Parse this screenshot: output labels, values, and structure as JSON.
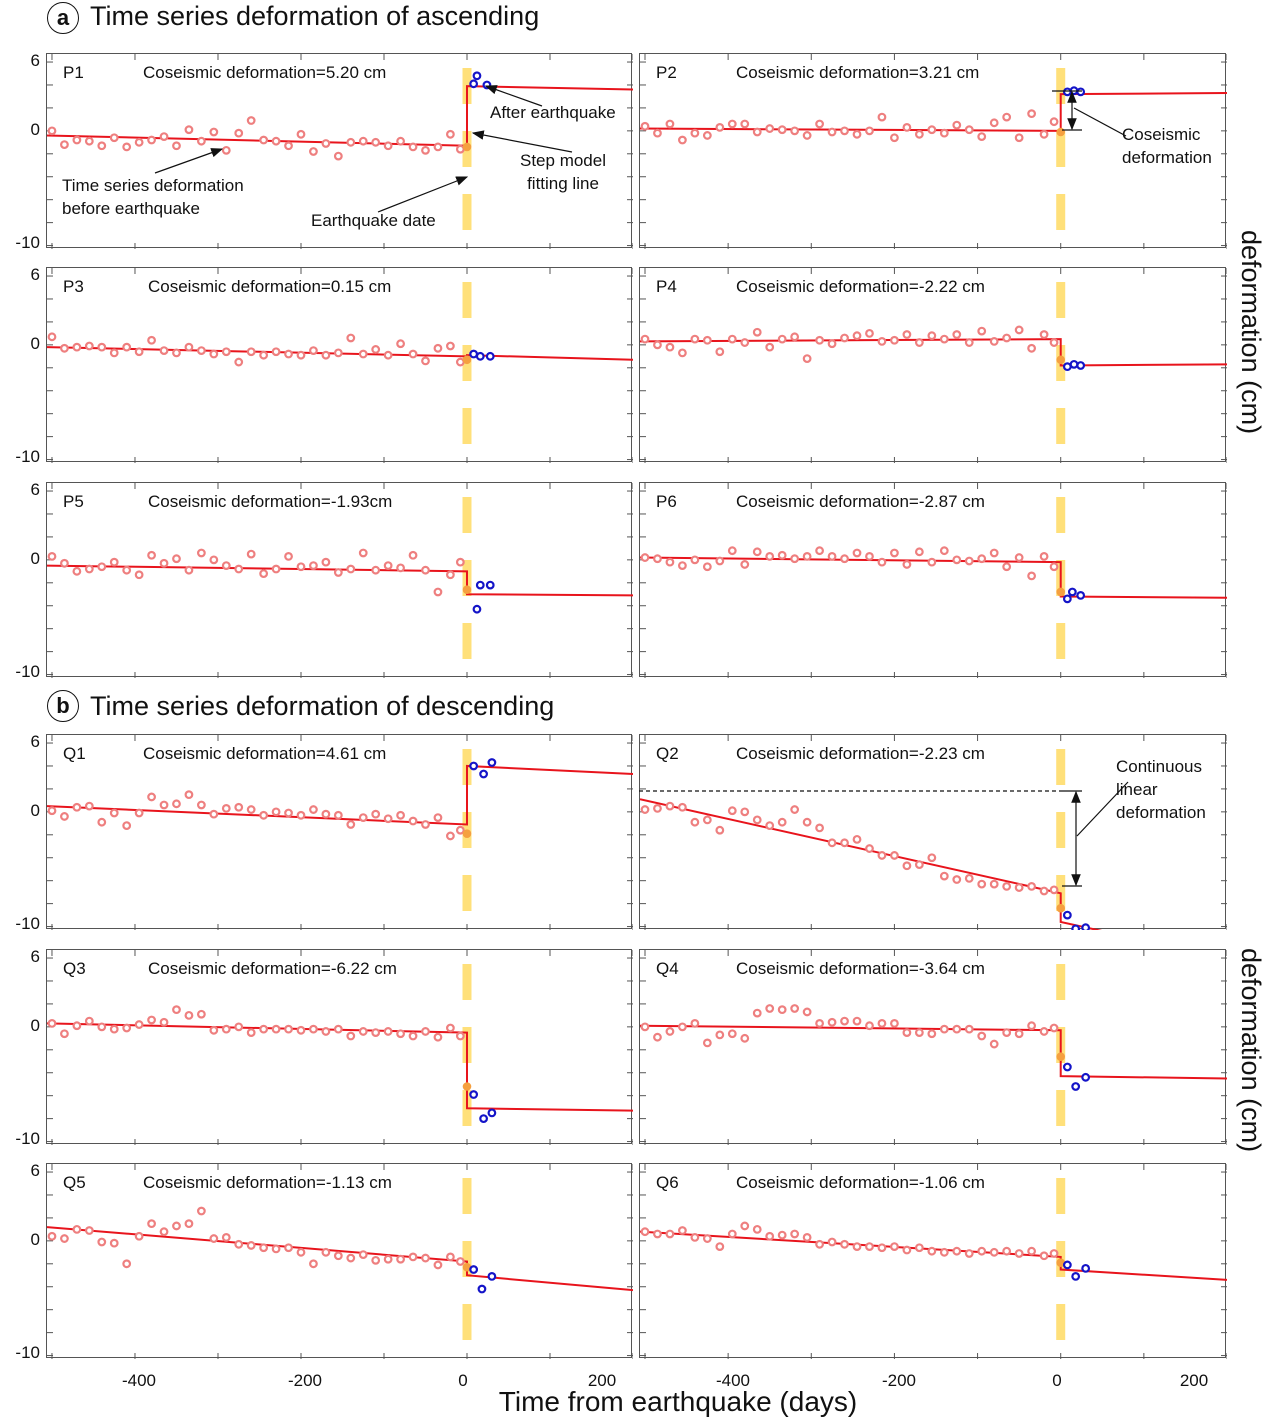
{
  "figure": {
    "section_a": {
      "letter": "a",
      "title": "Time series deformation of ascending"
    },
    "section_b": {
      "letter": "b",
      "title": "Time series deformation of descending"
    },
    "y_tick_labels": [
      "6",
      "0",
      "-10"
    ],
    "x_tick_labels": [
      "-400",
      "-200",
      "0",
      "200"
    ],
    "xlabel": "Time from earthquake (days)",
    "ylabel": "deformation (cm)"
  },
  "annotations": {
    "after_earthquake": "After earthquake",
    "step_model": [
      "Step model",
      "fitting line"
    ],
    "before_earthquake": [
      "Time series deformation",
      "before earthquake"
    ],
    "earthquake_date": "Earthquake date",
    "coseismic": [
      "Coseismic",
      "deformation"
    ],
    "continuous": [
      "Continuous",
      "linear",
      "deformation"
    ]
  },
  "colors": {
    "fit_line": "#e8141c",
    "pre_points": "#ee7f7f",
    "post_points": "#1414c8",
    "event_marker": "#ffe07a",
    "event_point": "#f5a040"
  },
  "chart_data": {
    "type": "scatter",
    "xlabel": "Time from earthquake (days)",
    "ylabel": "deformation (cm)",
    "xlim": [
      -506,
      200
    ],
    "ylim": [
      -10.3,
      6.7
    ],
    "xticks": [
      -500,
      -400,
      -300,
      -200,
      -100,
      0,
      100,
      200
    ],
    "yticks": [
      -10,
      -8,
      -6,
      -4,
      -2,
      0,
      2,
      4,
      6
    ],
    "event_day": 0,
    "pre_event_days": [
      -500,
      -485,
      -470,
      -455,
      -440,
      -425,
      -410,
      -395,
      -380,
      -365,
      -350,
      -335,
      -320,
      -305,
      -290,
      -275,
      -260,
      -245,
      -230,
      -215,
      -200,
      -185,
      -170,
      -155,
      -140,
      -125,
      -110,
      -95,
      -80,
      -65,
      -50,
      -35,
      -20,
      -8
    ],
    "panels": [
      {
        "id": "P1",
        "label": "Coseismic deformation=5.20 cm",
        "coseismic_cm": 5.2,
        "pre_values": [
          0.0,
          -1.2,
          -0.8,
          -0.9,
          -1.3,
          -0.6,
          -1.4,
          -1.0,
          -0.8,
          -0.5,
          -1.3,
          0.1,
          -0.9,
          -0.1,
          -1.7,
          -0.2,
          0.9,
          -0.8,
          -0.9,
          -1.3,
          -0.3,
          -1.8,
          -1.1,
          -2.2,
          -1.0,
          -0.9,
          -1.0,
          -1.3,
          -0.9,
          -1.4,
          -1.7,
          -1.4,
          -0.3,
          -1.6
        ],
        "event_value": -1.4,
        "post": [
          [
            8,
            4.1
          ],
          [
            12,
            4.8
          ],
          [
            24,
            4.0
          ]
        ],
        "fit": {
          "pre_start": -0.4,
          "pre_end": -1.3,
          "post_start": 3.9,
          "post_end": 3.6,
          "post_end_day": 200
        }
      },
      {
        "id": "P2",
        "label": "Coseismic deformation=3.21 cm",
        "coseismic_cm": 3.21,
        "pre_values": [
          0.4,
          -0.2,
          0.6,
          -0.8,
          -0.2,
          -0.4,
          0.3,
          0.6,
          0.6,
          -0.1,
          0.2,
          0.1,
          0.0,
          -0.4,
          0.6,
          -0.1,
          0.0,
          -0.3,
          0.0,
          1.2,
          -0.6,
          0.3,
          -0.3,
          0.1,
          -0.2,
          0.5,
          0.1,
          -0.5,
          0.7,
          1.2,
          -0.6,
          1.5,
          -0.3,
          0.8
        ],
        "event_value": -0.1,
        "post": [
          [
            8,
            3.4
          ],
          [
            16,
            3.5
          ],
          [
            24,
            3.4
          ]
        ],
        "fit": {
          "pre_start": 0.2,
          "pre_end": 0.0,
          "post_start": 3.2,
          "post_end": 3.3,
          "post_end_day": 200
        }
      },
      {
        "id": "P3",
        "label": "Coseismic deformation=0.15 cm",
        "coseismic_cm": 0.15,
        "pre_values": [
          0.7,
          -0.3,
          -0.2,
          -0.1,
          -0.2,
          -0.7,
          -0.2,
          -0.6,
          0.4,
          -0.5,
          -0.7,
          -0.2,
          -0.5,
          -0.8,
          -0.6,
          -1.5,
          -0.6,
          -0.9,
          -0.6,
          -0.8,
          -0.9,
          -0.5,
          -0.9,
          -0.7,
          0.6,
          -0.8,
          -0.4,
          -0.9,
          0.1,
          -0.8,
          -1.4,
          -0.3,
          -0.1,
          -1.5
        ],
        "event_value": -1.3,
        "post": [
          [
            8,
            -0.8
          ],
          [
            16,
            -1.0
          ],
          [
            28,
            -1.0
          ]
        ],
        "fit": {
          "pre_start": -0.2,
          "pre_end": -1.0,
          "post_start": -0.9,
          "post_end": -1.3,
          "post_end_day": 200
        }
      },
      {
        "id": "P4",
        "label": "Coseismic deformation=-2.22 cm",
        "coseismic_cm": -2.22,
        "pre_values": [
          0.5,
          0.0,
          -0.2,
          -0.7,
          0.5,
          0.4,
          -0.6,
          0.5,
          0.2,
          1.1,
          -0.2,
          0.5,
          0.7,
          -1.2,
          0.4,
          0.1,
          0.6,
          0.8,
          1.0,
          0.3,
          0.4,
          0.9,
          0.2,
          0.8,
          0.5,
          0.9,
          0.2,
          1.2,
          0.3,
          0.6,
          1.3,
          -0.3,
          0.9,
          0.2
        ],
        "event_value": -1.3,
        "post": [
          [
            8,
            -1.9
          ],
          [
            16,
            -1.7
          ],
          [
            24,
            -1.8
          ]
        ],
        "fit": {
          "pre_start": 0.3,
          "pre_end": 0.5,
          "post_start": -1.8,
          "post_end": -1.7,
          "post_end_day": 200
        }
      },
      {
        "id": "P5",
        "label": "Coseismic deformation=-1.93cm",
        "coseismic_cm": -1.93,
        "pre_values": [
          0.3,
          -0.3,
          -1.0,
          -0.8,
          -0.6,
          -0.2,
          -0.9,
          -1.3,
          0.4,
          -0.3,
          0.1,
          -0.9,
          0.6,
          0.0,
          -0.5,
          -0.8,
          0.5,
          -1.2,
          -0.8,
          0.3,
          -0.6,
          -0.5,
          -0.2,
          -1.1,
          -0.8,
          0.6,
          -0.9,
          -0.5,
          -0.7,
          0.4,
          -0.9,
          -2.8,
          -1.3,
          -0.2
        ],
        "event_value": -2.6,
        "post": [
          [
            12,
            -4.3
          ],
          [
            16,
            -2.2
          ],
          [
            28,
            -2.2
          ]
        ],
        "fit": {
          "pre_start": -0.5,
          "pre_end": -1.0,
          "post_start": -3.0,
          "post_end": -3.1,
          "post_end_day": 200
        }
      },
      {
        "id": "P6",
        "label": "Coseismic deformation=-2.87 cm",
        "coseismic_cm": -2.87,
        "pre_values": [
          0.2,
          0.1,
          -0.2,
          -0.5,
          0.0,
          -0.6,
          -0.1,
          0.8,
          -0.4,
          0.7,
          0.3,
          0.4,
          0.1,
          0.3,
          0.8,
          0.3,
          0.1,
          0.6,
          0.3,
          -0.2,
          0.6,
          -0.4,
          0.7,
          -0.2,
          0.8,
          0.0,
          -0.1,
          0.1,
          0.6,
          -0.6,
          0.2,
          -1.4,
          0.3,
          -0.6
        ],
        "event_value": -2.8,
        "post": [
          [
            8,
            -3.4
          ],
          [
            14,
            -2.8
          ],
          [
            24,
            -3.1
          ]
        ],
        "fit": {
          "pre_start": 0.2,
          "pre_end": -0.2,
          "post_start": -3.2,
          "post_end": -3.3,
          "post_end_day": 200
        }
      },
      {
        "id": "Q1",
        "label": "Coseismic deformation=4.61 cm",
        "coseismic_cm": 4.61,
        "pre_values": [
          0.1,
          -0.4,
          0.4,
          0.5,
          -0.9,
          -0.1,
          -1.2,
          -0.1,
          1.3,
          0.6,
          0.7,
          1.5,
          0.6,
          -0.2,
          0.3,
          0.4,
          0.2,
          -0.3,
          0.0,
          -0.1,
          -0.3,
          0.2,
          -0.2,
          -0.3,
          -1.1,
          -0.5,
          -0.2,
          -0.6,
          -0.3,
          -0.8,
          -1.1,
          -0.5,
          -2.1,
          -1.6
        ],
        "event_value": -1.9,
        "post": [
          [
            8,
            4.0
          ],
          [
            20,
            3.3
          ],
          [
            30,
            4.3
          ]
        ],
        "fit": {
          "pre_start": 0.5,
          "pre_end": -1.1,
          "post_start": 4.0,
          "post_end": 3.3,
          "post_end_day": 200
        }
      },
      {
        "id": "Q2",
        "label": "Coseismic deformation=-2.23 cm",
        "coseismic_cm": -2.23,
        "pre_values": [
          0.2,
          0.3,
          0.5,
          0.4,
          -0.9,
          -0.7,
          -1.6,
          0.1,
          0.0,
          -0.7,
          -1.2,
          -0.9,
          0.2,
          -0.9,
          -1.4,
          -2.7,
          -2.7,
          -2.4,
          -3.2,
          -3.8,
          -3.8,
          -4.7,
          -4.6,
          -4.0,
          -5.6,
          -5.9,
          -5.8,
          -6.3,
          -6.3,
          -6.5,
          -6.6,
          -6.5,
          -6.9,
          -6.8
        ],
        "event_value": -8.4,
        "post": [
          [
            8,
            -9.0
          ],
          [
            18,
            -10.2
          ],
          [
            30,
            -10.1
          ]
        ],
        "fit": {
          "pre_start": 1.1,
          "pre_end": -7.1,
          "post_start": -9.6,
          "post_end": -10.9,
          "post_end_day": 82
        },
        "reference_level": 1.1
      },
      {
        "id": "Q3",
        "label": "Coseismic deformation=-6.22 cm",
        "coseismic_cm": -6.22,
        "pre_values": [
          0.3,
          -0.6,
          0.1,
          0.5,
          0.0,
          -0.2,
          -0.1,
          0.2,
          0.6,
          0.4,
          1.5,
          1.0,
          1.1,
          -0.3,
          -0.2,
          0.0,
          -0.5,
          -0.2,
          -0.2,
          -0.2,
          -0.3,
          -0.2,
          -0.4,
          -0.2,
          -0.8,
          -0.4,
          -0.5,
          -0.4,
          -0.6,
          -0.8,
          -0.4,
          -0.9,
          -0.1,
          -0.8
        ],
        "event_value": -5.2,
        "post": [
          [
            8,
            -5.9
          ],
          [
            20,
            -8.0
          ],
          [
            30,
            -7.5
          ]
        ],
        "fit": {
          "pre_start": 0.3,
          "pre_end": -0.5,
          "post_start": -7.1,
          "post_end": -7.3,
          "post_end_day": 200
        }
      },
      {
        "id": "Q4",
        "label": "Coseismic deformation=-3.64 cm",
        "coseismic_cm": -3.64,
        "pre_values": [
          0.0,
          -0.9,
          -0.4,
          0.0,
          0.3,
          -1.4,
          -0.7,
          -0.6,
          -1.0,
          1.2,
          1.6,
          1.5,
          1.6,
          1.3,
          0.3,
          0.4,
          0.5,
          0.5,
          0.1,
          0.3,
          0.3,
          -0.5,
          -0.5,
          -0.6,
          -0.2,
          -0.2,
          -0.2,
          -0.8,
          -1.5,
          -0.5,
          -0.6,
          0.1,
          -0.4,
          -0.1
        ],
        "event_value": -2.6,
        "post": [
          [
            8,
            -3.5
          ],
          [
            18,
            -5.2
          ],
          [
            30,
            -4.4
          ]
        ],
        "fit": {
          "pre_start": 0.1,
          "pre_end": -0.3,
          "post_start": -4.3,
          "post_end": -4.5,
          "post_end_day": 200
        }
      },
      {
        "id": "Q5",
        "label": "Coseismic deformation=-1.13 cm",
        "coseismic_cm": -1.13,
        "pre_values": [
          0.4,
          0.2,
          1.0,
          0.9,
          -0.1,
          -0.2,
          -2.0,
          0.4,
          1.5,
          0.8,
          1.3,
          1.5,
          2.6,
          0.2,
          0.3,
          -0.3,
          -0.4,
          -0.6,
          -0.7,
          -0.6,
          -1.0,
          -2.0,
          -1.0,
          -1.3,
          -1.5,
          -1.2,
          -1.7,
          -1.6,
          -1.6,
          -1.4,
          -1.5,
          -2.1,
          -1.4,
          -1.8
        ],
        "event_value": -2.3,
        "post": [
          [
            8,
            -2.5
          ],
          [
            18,
            -4.2
          ],
          [
            30,
            -3.1
          ]
        ],
        "fit": {
          "pre_start": 1.2,
          "pre_end": -1.8,
          "post_start": -3.0,
          "post_end": -4.3,
          "post_end_day": 200
        }
      },
      {
        "id": "Q6",
        "label": "Coseismic deformation=-1.06 cm",
        "coseismic_cm": -1.06,
        "pre_values": [
          0.8,
          0.6,
          0.6,
          0.9,
          0.3,
          0.2,
          -0.5,
          0.6,
          1.3,
          1.0,
          0.4,
          0.5,
          0.6,
          0.3,
          -0.3,
          -0.1,
          -0.3,
          -0.5,
          -0.5,
          -0.6,
          -0.5,
          -0.8,
          -0.6,
          -0.9,
          -1.0,
          -0.9,
          -1.1,
          -0.9,
          -1.0,
          -0.9,
          -1.1,
          -0.9,
          -1.3,
          -1.1
        ],
        "event_value": -1.9,
        "post": [
          [
            8,
            -2.1
          ],
          [
            18,
            -3.1
          ],
          [
            30,
            -2.4
          ]
        ],
        "fit": {
          "pre_start": 0.8,
          "pre_end": -1.4,
          "post_start": -2.5,
          "post_end": -3.4,
          "post_end_day": 200
        }
      }
    ]
  }
}
